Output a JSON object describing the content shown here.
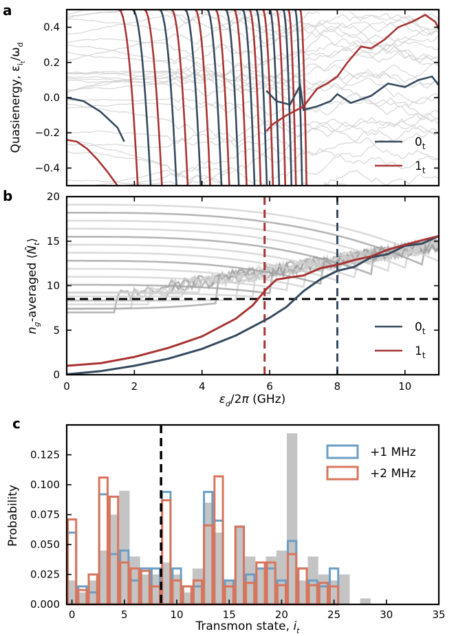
{
  "panels": {
    "a": {
      "letter": "a",
      "ylabel": "Quasienergy, ε_{i_t}/ω_d",
      "ylabel_main": "Quasienergy, ε",
      "ylabel_sub": "i",
      "ylabel_subsub": "t",
      "ylabel_tail": "/ω",
      "ylabel_tailsub": "d"
    },
    "b": {
      "letter": "b",
      "ylabel": "n_g-averaged ⟨N̂_t⟩",
      "xlabel": "ε_d/2π (GHz)"
    },
    "c": {
      "letter": "c",
      "ylabel": "Probability",
      "xlabel": "Transmon state, i_t"
    }
  },
  "chart_data": [
    {
      "id": "a",
      "type": "line",
      "xlim": [
        0,
        11
      ],
      "ylim": [
        -0.5,
        0.5
      ],
      "yticks": [
        -0.4,
        -0.2,
        0.0,
        0.2,
        0.4
      ],
      "ytick_labels": [
        "−0.4",
        "−0.2",
        "0.0",
        "0.2",
        "0.4"
      ],
      "xtick_labels_shown": false,
      "grid": false,
      "legend_position": "lower-right",
      "series": [
        {
          "name": "0_t",
          "color": "#34495e",
          "x": [
            0,
            0.5,
            1.0,
            1.5,
            1.7,
            5.9,
            6.2,
            6.6,
            6.9,
            7.0,
            7.4,
            7.8,
            8.0,
            8.4,
            9.0,
            9.5,
            10.0,
            10.4,
            10.8,
            11.0
          ],
          "y": [
            0.0,
            -0.02,
            -0.08,
            -0.17,
            -0.25,
            0.04,
            -0.02,
            -0.04,
            0.07,
            -0.07,
            -0.05,
            -0.02,
            0.02,
            -0.03,
            0.01,
            0.08,
            0.06,
            0.1,
            0.12,
            0.07
          ]
        },
        {
          "name": "1_t",
          "color": "#a83232",
          "x": [
            0,
            0.3,
            0.6,
            0.9,
            1.2,
            1.5,
            5.9,
            6.1,
            6.5,
            7.0,
            7.4,
            7.7,
            8.0,
            8.3,
            8.7,
            9.0,
            9.4,
            9.8,
            10.2,
            10.6,
            10.9,
            11.0
          ],
          "y": [
            -0.24,
            -0.25,
            -0.29,
            -0.35,
            -0.42,
            -0.5,
            -0.19,
            -0.15,
            -0.1,
            -0.05,
            0.05,
            0.08,
            0.12,
            0.2,
            0.29,
            0.28,
            0.33,
            0.4,
            0.43,
            0.47,
            0.43,
            0.39
          ]
        }
      ],
      "gray_series_note": ""
    },
    {
      "id": "b",
      "type": "line",
      "xlim": [
        0,
        11
      ],
      "ylim": [
        0,
        20
      ],
      "xticks": [
        0,
        2,
        4,
        6,
        8,
        10
      ],
      "xtick_labels": [
        "0",
        "2",
        "4",
        "6",
        "8",
        "10"
      ],
      "yticks": [
        0,
        5,
        10,
        15,
        20
      ],
      "ytick_labels": [
        "0",
        "5",
        "10",
        "15",
        "20"
      ],
      "hline_y": 8.5,
      "vlines": [
        {
          "x": 5.85,
          "color": "#a83232"
        },
        {
          "x": 8.0,
          "color": "#34495e"
        }
      ],
      "legend_position": "lower-right",
      "series": [
        {
          "name": "0_t",
          "color": "#34495e",
          "x": [
            0,
            1,
            2,
            3,
            4,
            5,
            6,
            6.5,
            7.0,
            7.5,
            8.0,
            8.5,
            9.0,
            9.5,
            10.0,
            10.5,
            11.0
          ],
          "y": [
            0.05,
            0.4,
            1.0,
            1.8,
            2.9,
            4.4,
            6.4,
            7.8,
            9.2,
            10.5,
            11.6,
            12.2,
            13.0,
            13.6,
            14.3,
            14.8,
            15.4
          ]
        },
        {
          "name": "1_t",
          "color": "#a83232",
          "x": [
            0,
            1,
            2,
            3,
            4,
            5,
            5.5,
            5.9,
            6.2,
            6.6,
            7.0,
            7.5,
            8.0,
            8.5,
            9.0,
            9.5,
            10.0,
            10.5,
            11.0
          ],
          "y": [
            1.0,
            1.3,
            2.0,
            3.0,
            4.3,
            6.3,
            7.8,
            9.6,
            10.5,
            10.8,
            11.2,
            11.8,
            12.3,
            12.9,
            13.5,
            14.2,
            14.6,
            15.3,
            15.8
          ]
        }
      ]
    },
    {
      "id": "c",
      "type": "bar",
      "xlim": [
        -0.5,
        35
      ],
      "ylim": [
        0,
        0.15
      ],
      "xticks": [
        0,
        5,
        10,
        15,
        20,
        25,
        30,
        35
      ],
      "xtick_labels": [
        "0",
        "5",
        "10",
        "15",
        "20",
        "25",
        "30",
        "35"
      ],
      "yticks": [
        0.0,
        0.025,
        0.05,
        0.075,
        0.1,
        0.125
      ],
      "ytick_labels": [
        "0.000",
        "0.025",
        "0.050",
        "0.075",
        "0.100",
        "0.125"
      ],
      "vline_x": 8.5,
      "legend_position": "top-right",
      "bin_centers": [
        0,
        1,
        2,
        3,
        4,
        5,
        6,
        7,
        8,
        9,
        10,
        11,
        12,
        13,
        14,
        15,
        16,
        17,
        18,
        19,
        20,
        21,
        22,
        23,
        24,
        25,
        26,
        27,
        28
      ],
      "series": [
        {
          "name": "",
          "color": "#c4c4c4",
          "style": "filled",
          "values": [
            0.02,
            0.01,
            0.02,
            0.045,
            0.075,
            0.095,
            0.04,
            0.025,
            0.025,
            0.035,
            0.025,
            0.01,
            0.03,
            0.085,
            0.06,
            0.02,
            0.065,
            0.04,
            0.03,
            0.04,
            0.045,
            0.143,
            0.02,
            0.04,
            0.025,
            0.02,
            0.025,
            0.0,
            0.005
          ]
        },
        {
          "name": "+1 MHz",
          "color": "#6a9ec6",
          "style": "step",
          "values": [
            0.06,
            0.015,
            0.01,
            0.092,
            0.042,
            0.045,
            0.02,
            0.03,
            0.03,
            0.094,
            0.03,
            0.015,
            0.015,
            0.094,
            0.07,
            0.02,
            0.065,
            0.025,
            0.03,
            0.03,
            0.02,
            0.053,
            0.03,
            0.02,
            0.015,
            0.03,
            0.0,
            0.0,
            0.0
          ]
        },
        {
          "name": "+2 MHz",
          "color": "#d9745a",
          "style": "step",
          "values": [
            0.071,
            0.012,
            0.025,
            0.106,
            0.09,
            0.035,
            0.03,
            0.028,
            0.015,
            0.087,
            0.02,
            0.015,
            0.02,
            0.066,
            0.107,
            0.015,
            0.065,
            0.018,
            0.035,
            0.035,
            0.016,
            0.042,
            0.03,
            0.016,
            0.018,
            0.015,
            0.0,
            0.0,
            0.0
          ]
        }
      ]
    }
  ],
  "legend": {
    "a": [
      {
        "label": "0",
        "sub": "t"
      },
      {
        "label": "1",
        "sub": "t"
      }
    ],
    "b": [
      {
        "label": "0",
        "sub": "t"
      },
      {
        "label": "1",
        "sub": "t"
      }
    ],
    "c": [
      {
        "label": "+1 MHz"
      },
      {
        "label": "+2 MHz"
      }
    ]
  }
}
